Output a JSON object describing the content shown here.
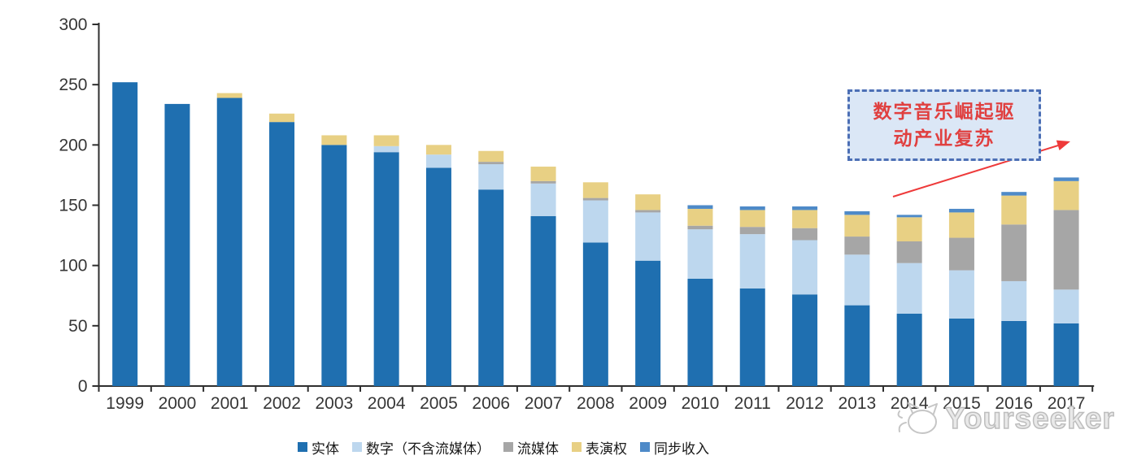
{
  "chart_data": {
    "type": "bar",
    "stacked": true,
    "categories": [
      "1999",
      "2000",
      "2001",
      "2002",
      "2003",
      "2004",
      "2005",
      "2006",
      "2007",
      "2008",
      "2009",
      "2010",
      "2011",
      "2012",
      "2013",
      "2014",
      "2015",
      "2016",
      "2017"
    ],
    "series": [
      {
        "name": "实体",
        "color": "#1f6fb0",
        "values": [
          252,
          234,
          239,
          219,
          200,
          194,
          181,
          163,
          141,
          119,
          104,
          89,
          81,
          76,
          67,
          60,
          56,
          54,
          52
        ]
      },
      {
        "name": "数字（不含流媒体）",
        "color": "#bdd7ee",
        "values": [
          0,
          0,
          0,
          0,
          0,
          5,
          11,
          21,
          27,
          35,
          40,
          41,
          45,
          45,
          42,
          42,
          40,
          33,
          28
        ]
      },
      {
        "name": "流媒体",
        "color": "#a6a6a6",
        "values": [
          0,
          0,
          0,
          0,
          0,
          0,
          0,
          2,
          2,
          2,
          2,
          3,
          6,
          10,
          15,
          18,
          27,
          47,
          66
        ]
      },
      {
        "name": "表演权",
        "color": "#e8d084",
        "values": [
          0,
          0,
          4,
          7,
          8,
          9,
          8,
          9,
          12,
          13,
          13,
          14,
          14,
          15,
          18,
          20,
          21,
          24,
          24
        ]
      },
      {
        "name": "同步收入",
        "color": "#4e8ac8",
        "values": [
          0,
          0,
          0,
          0,
          0,
          0,
          0,
          0,
          0,
          0,
          0,
          3,
          3,
          3,
          3,
          2,
          3,
          3,
          3
        ]
      }
    ],
    "ylim": [
      0,
      300
    ],
    "yticks": [
      0,
      50,
      100,
      150,
      200,
      250,
      300
    ],
    "grid": false,
    "legend_position": "bottom"
  },
  "annotation": {
    "line1": "数字音乐崛起驱",
    "line2": "动产业复苏",
    "text_color": "#e04040",
    "border_color": "#4c6fb5",
    "fill_color": "#dbe7f6",
    "arrow_color": "#ee3a3a"
  },
  "watermark": {
    "icon": "cat-logo-icon",
    "text": "Yourseeker",
    "color": "#bdbdbd"
  }
}
